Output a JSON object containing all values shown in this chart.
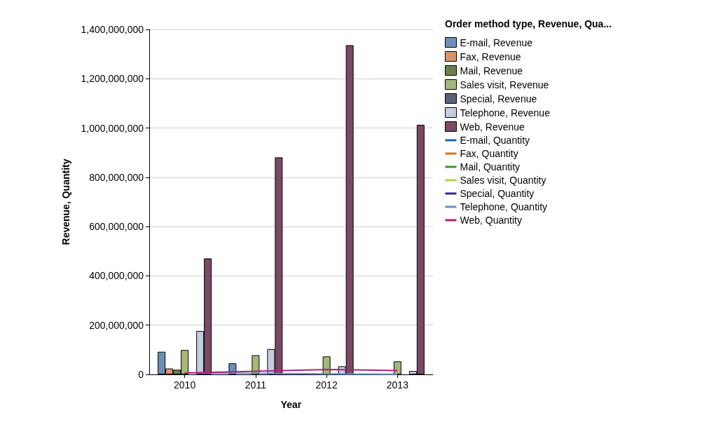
{
  "chart_data": {
    "type": "bar",
    "xlabel": "Year",
    "ylabel": "Revenue, Quantity",
    "legend_title": "Order method type, Revenue, Qua...",
    "categories": [
      "2010",
      "2011",
      "2012",
      "2013"
    ],
    "ylim": [
      0,
      1400000000
    ],
    "yticks": [
      {
        "value": 0,
        "label": "0"
      },
      {
        "value": 200000000,
        "label": "200,000,000"
      },
      {
        "value": 400000000,
        "label": "400,000,000"
      },
      {
        "value": 600000000,
        "label": "600,000,000"
      },
      {
        "value": 800000000,
        "label": "800,000,000"
      },
      {
        "value": 1000000000,
        "label": "1,000,000,000"
      },
      {
        "value": 1200000000,
        "label": "1,200,000,000"
      },
      {
        "value": 1400000000,
        "label": "1,400,000,000"
      }
    ],
    "grid": "y",
    "legend": "right",
    "marker": "none",
    "series": [
      {
        "name": "E-mail, Revenue",
        "color": "#6f8fb8",
        "values": [
          92000000,
          45000000,
          null,
          null
        ]
      },
      {
        "name": "Fax, Revenue",
        "color": "#d9956a",
        "values": [
          24000000,
          null,
          null,
          null
        ]
      },
      {
        "name": "Mail, Revenue",
        "color": "#6d7f4f",
        "values": [
          19000000,
          null,
          null,
          null
        ]
      },
      {
        "name": "Sales visit, Revenue",
        "color": "#a6b77a",
        "values": [
          99000000,
          78000000,
          73000000,
          53000000
        ]
      },
      {
        "name": "Special, Revenue",
        "color": "#5a5f7a",
        "values": [
          null,
          null,
          null,
          null
        ]
      },
      {
        "name": "Telephone, Revenue",
        "color": "#c5cde0",
        "values": [
          176000000,
          103000000,
          33000000,
          14000000
        ]
      },
      {
        "name": "Web, Revenue",
        "color": "#7a4a63",
        "values": [
          471000000,
          881000000,
          1336000000,
          1013000000
        ]
      },
      {
        "name": "E-mail, Quantity",
        "type": "line",
        "color": "#1f5fbf",
        "values": [
          null,
          null,
          null,
          null
        ]
      },
      {
        "name": "Fax, Quantity",
        "type": "line",
        "color": "#e07020",
        "values": [
          null,
          null,
          null,
          null
        ]
      },
      {
        "name": "Mail, Quantity",
        "type": "line",
        "color": "#3a9a20",
        "values": [
          null,
          null,
          null,
          null
        ]
      },
      {
        "name": "Sales visit, Quantity",
        "type": "line",
        "color": "#b8d040",
        "values": [
          null,
          null,
          null,
          null
        ]
      },
      {
        "name": "Special, Quantity",
        "type": "line",
        "color": "#2a2a8a",
        "values": [
          null,
          null,
          null,
          null
        ]
      },
      {
        "name": "Telephone, Quantity",
        "type": "line",
        "color": "#6090d0",
        "values": [
          6000000,
          4000000,
          2000000,
          1000000
        ]
      },
      {
        "name": "Web, Quantity",
        "type": "line",
        "color": "#b0207a",
        "values": [
          6000000,
          13000000,
          20000000,
          16000000
        ]
      }
    ]
  }
}
